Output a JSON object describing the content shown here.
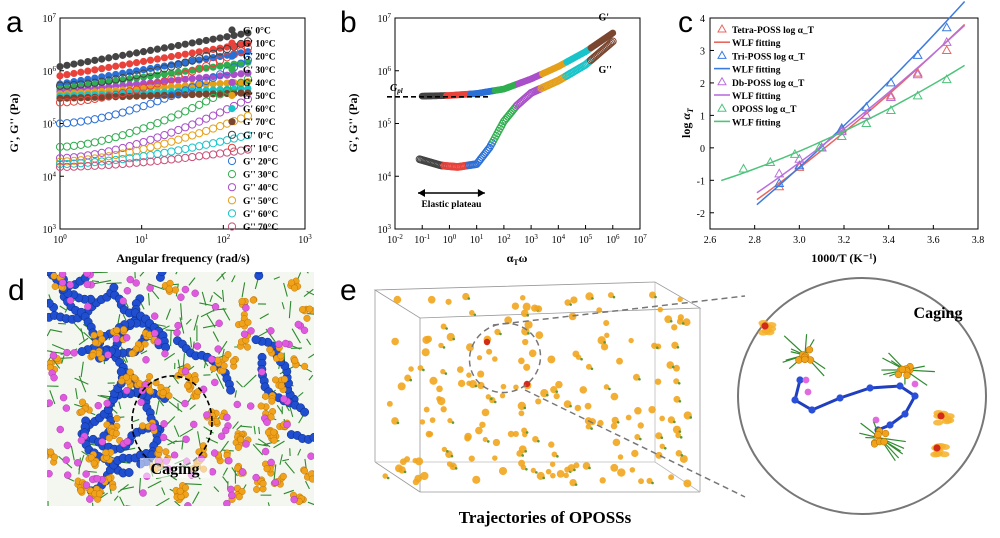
{
  "figure": {
    "panel_letters": [
      "a",
      "b",
      "c",
      "d",
      "e"
    ]
  },
  "chart_data": [
    {
      "panel": "a",
      "type": "scatter",
      "log_x": true,
      "log_y": true,
      "xlabel": "Angular frequency (rad/s)",
      "ylabel": "G', G'' (Pa)",
      "xlim": [
        1,
        1000
      ],
      "ylim": [
        1000,
        10000000
      ],
      "x_ticks": [
        "10^0",
        "10^1",
        "10^2",
        "10^3"
      ],
      "y_ticks": [
        "10^3",
        "10^4",
        "10^5",
        "10^6",
        "10^7"
      ],
      "x_points": [
        1,
        200
      ],
      "legend_position": "right",
      "series": [
        {
          "name": "G'  0°C",
          "marker": "filled",
          "color": "#444444",
          "start": 1200000,
          "end": 5200000
        },
        {
          "name": "G' 10°C",
          "marker": "filled",
          "color": "#e8423b",
          "start": 800000,
          "end": 3300000
        },
        {
          "name": "G' 20°C",
          "marker": "filled",
          "color": "#2a6fd6",
          "start": 560000,
          "end": 2300000
        },
        {
          "name": "G' 30°C",
          "marker": "filled",
          "color": "#2fae4f",
          "start": 450000,
          "end": 1450000
        },
        {
          "name": "G' 40°C",
          "marker": "filled",
          "color": "#a94fc9",
          "start": 400000,
          "end": 900000
        },
        {
          "name": "G' 50°C",
          "marker": "filled",
          "color": "#e5a01a",
          "start": 360000,
          "end": 620000
        },
        {
          "name": "G' 60°C",
          "marker": "filled",
          "color": "#19c4c9",
          "start": 330000,
          "end": 460000
        },
        {
          "name": "G' 70°C",
          "marker": "filled",
          "color": "#7a4630",
          "start": 300000,
          "end": 380000
        },
        {
          "name": "G''  0°C",
          "marker": "open",
          "color": "#444444",
          "start": 520000,
          "end": 3600000
        },
        {
          "name": "G'' 10°C",
          "marker": "open",
          "color": "#e8423b",
          "start": 250000,
          "end": 2700000
        },
        {
          "name": "G'' 20°C",
          "marker": "open",
          "color": "#2a6fd6",
          "start": 100000,
          "end": 1600000
        },
        {
          "name": "G'' 30°C",
          "marker": "open",
          "color": "#2fae4f",
          "start": 36000,
          "end": 700000
        },
        {
          "name": "G'' 40°C",
          "marker": "open",
          "color": "#a94fc9",
          "start": 22000,
          "end": 290000
        },
        {
          "name": "G'' 50°C",
          "marker": "open",
          "color": "#e5a01a",
          "start": 19000,
          "end": 140000
        },
        {
          "name": "G'' 60°C",
          "marker": "open",
          "color": "#19c4c9",
          "start": 17000,
          "end": 60000
        },
        {
          "name": "G'' 70°C",
          "marker": "open",
          "color": "#c9507a",
          "start": 15000,
          "end": 32000
        }
      ]
    },
    {
      "panel": "b",
      "type": "scatter",
      "log_x": true,
      "log_y": true,
      "xlabel": "α_T ω",
      "ylabel": "G', G'' (Pa)",
      "xlim": [
        0.01,
        10000000
      ],
      "ylim": [
        1000,
        10000000
      ],
      "x_ticks": [
        "10^-2",
        "10^-1",
        "10^0",
        "10^1",
        "10^2",
        "10^3",
        "10^4",
        "10^5",
        "10^6",
        "10^7"
      ],
      "y_ticks": [
        "10^3",
        "10^4",
        "10^5",
        "10^6",
        "10^7"
      ],
      "plateau_label": "G_pl",
      "plateau_value": 320000,
      "annotation": "Elastic plateau",
      "annotation_range": [
        0.07,
        20
      ],
      "curve_labels": [
        "G'",
        "G''"
      ],
      "series": [
        {
          "name": "G'",
          "x": [
            0.1,
            1,
            10,
            100,
            1000,
            10000,
            100000,
            1000000
          ],
          "y": [
            330000,
            340000,
            370000,
            450000,
            700000,
            1200000,
            2300000,
            5200000
          ]
        },
        {
          "name": "G''",
          "x": [
            0.08,
            0.5,
            2,
            10,
            30,
            100,
            300,
            1000,
            10000,
            100000,
            1000000
          ],
          "y": [
            21000,
            16000,
            15000,
            17000,
            35000,
            110000,
            220000,
            380000,
            650000,
            1300000,
            3600000
          ]
        }
      ]
    },
    {
      "panel": "c",
      "type": "scatter",
      "xlabel": "1000/T (K⁻¹)",
      "ylabel": "log α_T",
      "xlim": [
        2.6,
        3.8
      ],
      "ylim": [
        -2.5,
        4
      ],
      "x_ticks": [
        "2.6",
        "2.8",
        "3.0",
        "3.2",
        "3.4",
        "3.6",
        "3.8"
      ],
      "y_ticks": [
        "-2",
        "-1",
        "0",
        "1",
        "2",
        "3",
        "4"
      ],
      "legend_position": "top-left",
      "series": [
        {
          "name": "Tetra-POSS log α_T",
          "fit_name": "WLF fitting",
          "color": "#e8675f",
          "x": [
            2.91,
            3.0,
            3.1,
            3.19,
            3.3,
            3.41,
            3.53,
            3.66
          ],
          "y": [
            -1.2,
            -0.6,
            0.0,
            0.55,
            1.0,
            1.6,
            2.3,
            3.0
          ]
        },
        {
          "name": "Tri-POSS log α_T",
          "fit_name": "WLF fitting",
          "color": "#3b7be0",
          "x": [
            2.91,
            3.0,
            3.1,
            3.19,
            3.3,
            3.41,
            3.53,
            3.66
          ],
          "y": [
            -1.1,
            -0.55,
            0.0,
            0.6,
            1.25,
            2.0,
            2.85,
            3.7
          ]
        },
        {
          "name": "Db-POSS log α_T",
          "fit_name": "WLF fitting",
          "color": "#b96fdc",
          "x": [
            2.91,
            3.0,
            3.1,
            3.19,
            3.3,
            3.41,
            3.53,
            3.66
          ],
          "y": [
            -0.8,
            -0.35,
            0.0,
            0.5,
            1.0,
            1.55,
            2.25,
            3.25
          ]
        },
        {
          "name": "OPOSS log α_T",
          "fit_name": "WLF fitting",
          "color": "#4ec37c",
          "x": [
            2.75,
            2.87,
            2.98,
            3.09,
            3.19,
            3.3,
            3.41,
            3.53,
            3.66
          ],
          "y": [
            -0.65,
            -0.45,
            -0.2,
            0.0,
            0.35,
            0.75,
            1.15,
            1.6,
            2.1
          ]
        }
      ]
    }
  ],
  "panel_d": {
    "label": "Caging"
  },
  "panel_e": {
    "label": "Caging",
    "caption": "Trajectories of OPOSSs"
  }
}
